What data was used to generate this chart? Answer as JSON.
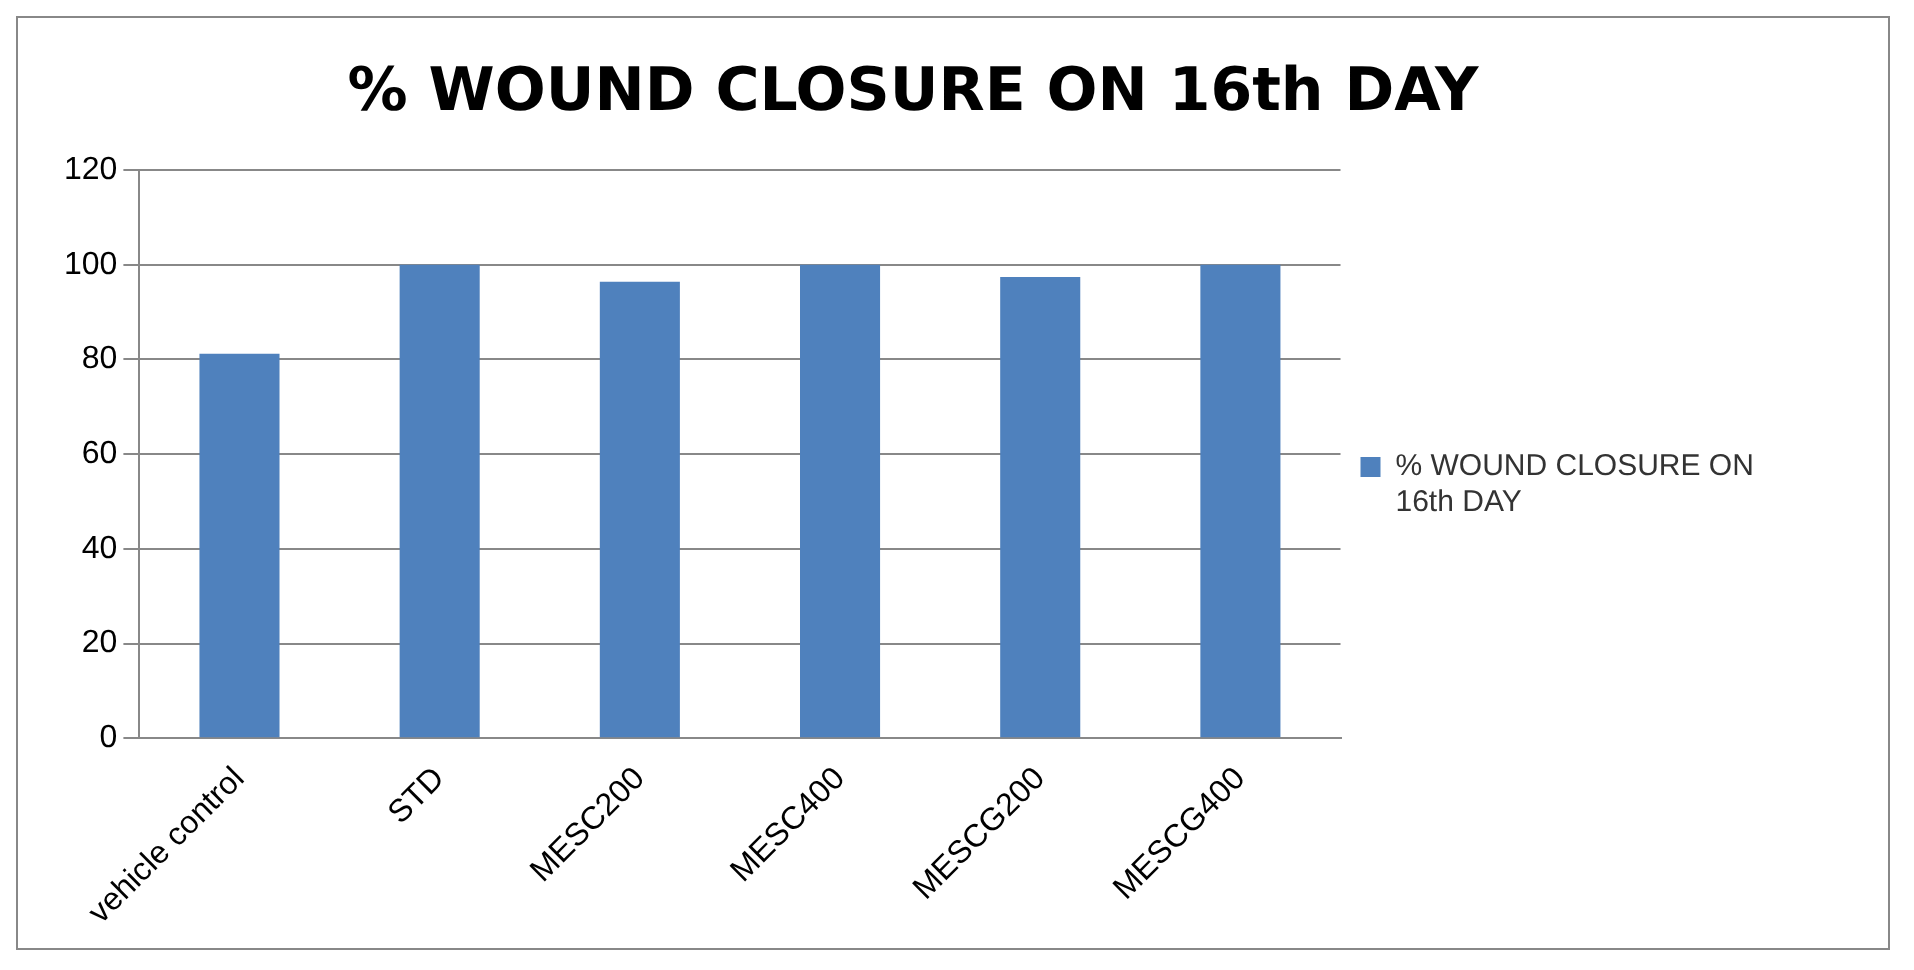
{
  "chart_data": {
    "type": "bar",
    "title": "% WOUND CLOSURE ON 16th DAY",
    "categories": [
      "vehicle control",
      "STD",
      "MESC200",
      "MESC400",
      "MESCG200",
      "MESCG400"
    ],
    "series": [
      {
        "name": "% WOUND CLOSURE ON 16th DAY",
        "color": "#4f81bd",
        "values": [
          81.2,
          100,
          96.4,
          100,
          97.4,
          100
        ]
      }
    ],
    "ylim": [
      0,
      120
    ],
    "yticks": [
      0,
      20,
      40,
      60,
      80,
      100,
      120
    ],
    "grid": "y",
    "legend": "right"
  }
}
